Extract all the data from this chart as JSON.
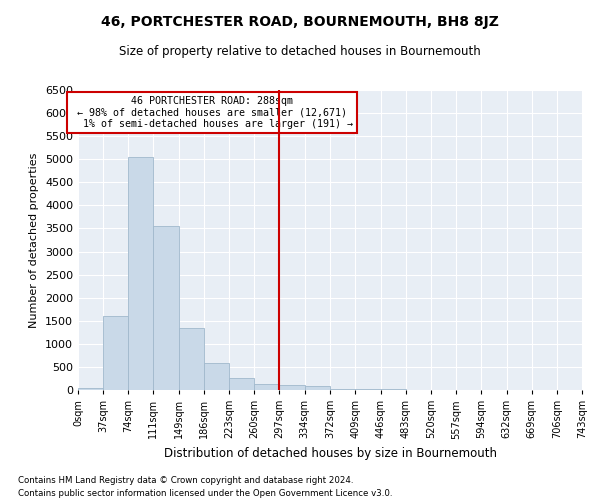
{
  "title": "46, PORTCHESTER ROAD, BOURNEMOUTH, BH8 8JZ",
  "subtitle": "Size of property relative to detached houses in Bournemouth",
  "xlabel": "Distribution of detached houses by size in Bournemouth",
  "ylabel": "Number of detached properties",
  "footer_line1": "Contains HM Land Registry data © Crown copyright and database right 2024.",
  "footer_line2": "Contains public sector information licensed under the Open Government Licence v3.0.",
  "annotation_line1": "  46 PORTCHESTER ROAD: 288sqm  ",
  "annotation_line2": "← 98% of detached houses are smaller (12,671)",
  "annotation_line3": "  1% of semi-detached houses are larger (191) →",
  "property_line_x": 297,
  "bin_edges": [
    0,
    37,
    74,
    111,
    149,
    186,
    223,
    260,
    297,
    334,
    372,
    409,
    446,
    483,
    520,
    557,
    594,
    632,
    669,
    706,
    743
  ],
  "bar_heights": [
    50,
    1600,
    5050,
    3550,
    1350,
    575,
    260,
    120,
    115,
    80,
    30,
    20,
    15,
    10,
    5,
    3,
    2,
    2,
    1,
    1
  ],
  "bar_color": "#c9d9e8",
  "bar_edge_color": "#a0b8cc",
  "vline_color": "#cc0000",
  "annotation_box_edge": "#cc0000",
  "background_color": "#e8eef5",
  "ylim": [
    0,
    6500
  ],
  "yticks": [
    0,
    500,
    1000,
    1500,
    2000,
    2500,
    3000,
    3500,
    4000,
    4500,
    5000,
    5500,
    6000,
    6500
  ]
}
